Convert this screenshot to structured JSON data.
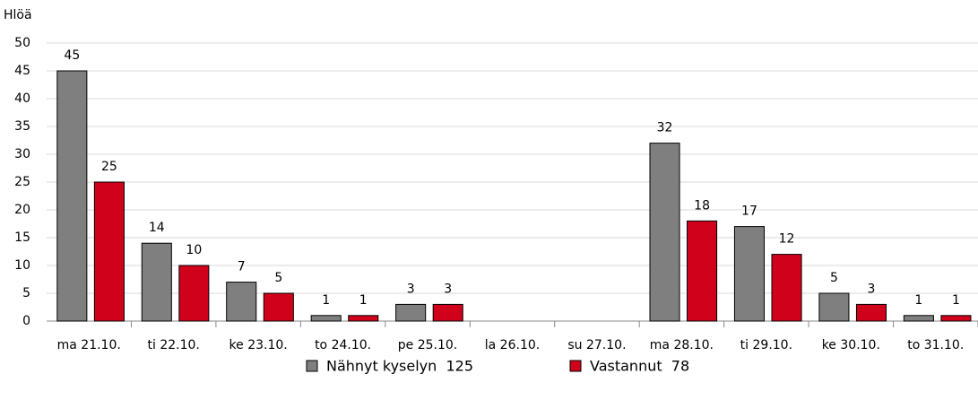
{
  "chart_data": {
    "type": "bar",
    "y_label": "Hlöä",
    "categories": [
      "ma 21.10.",
      "ti 22.10.",
      "ke 23.10.",
      "to 24.10.",
      "pe 25.10.",
      "la 26.10.",
      "su 27.10.",
      "ma 28.10.",
      "ti 29.10.",
      "ke 30.10.",
      "to 31.10."
    ],
    "series": [
      {
        "name": "Nähnyt kyselyn  125",
        "color": "#7f7f7f",
        "values": [
          45,
          14,
          7,
          1,
          3,
          null,
          null,
          32,
          17,
          5,
          1
        ]
      },
      {
        "name": "Vastannut  78",
        "color": "#d0021b",
        "values": [
          25,
          10,
          5,
          1,
          3,
          null,
          null,
          18,
          12,
          3,
          1
        ]
      }
    ],
    "ylim": [
      0,
      50
    ],
    "yticks": [
      0,
      5,
      10,
      15,
      20,
      25,
      30,
      35,
      40,
      45,
      50
    ],
    "grid": true,
    "legend": "bottom"
  }
}
